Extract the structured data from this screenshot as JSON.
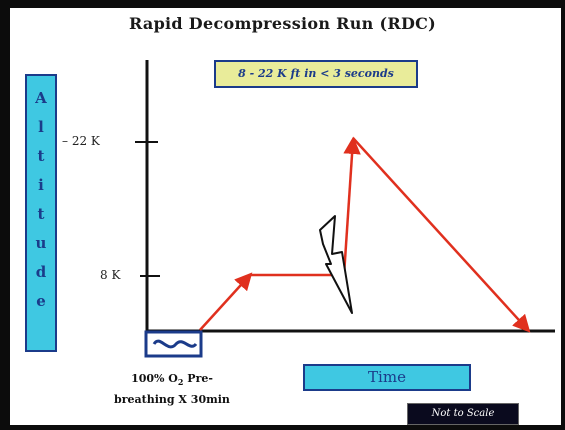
{
  "title": "Rapid Decompression Run (RDC)",
  "yaxis_letters": [
    "A",
    "l",
    "t",
    "i",
    "t",
    "u",
    "d",
    "e"
  ],
  "note": "8 - 22 K ft in < 3 seconds",
  "y_labels": {
    "high": "– 22 K",
    "low": "8 K"
  },
  "prebreathing": {
    "line1": "100% O",
    "sub": "2",
    "line1_rest": " Pre-",
    "line2": "breathing X 30min"
  },
  "xaxis_label": "Time",
  "scale_note": "Not to Scale",
  "colors": {
    "arrow": "#e0301e",
    "axis": "#111111",
    "label_box": "#3fc8e2",
    "box_border": "#1b3b8a",
    "note_bg": "#e9ec9a"
  },
  "icons": {
    "event": "lightning-bolt-icon",
    "prebreathing": "mask-wave-icon"
  }
}
